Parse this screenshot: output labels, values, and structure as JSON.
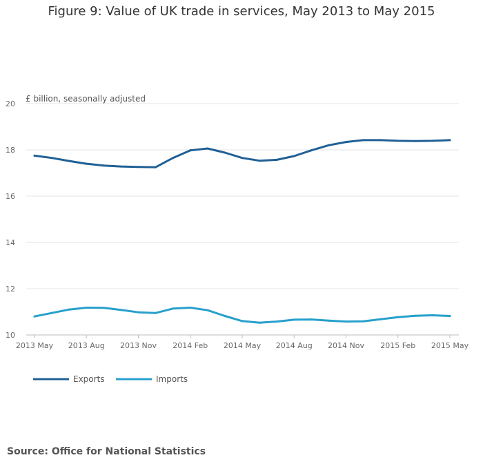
{
  "title": "Figure 9: Value of UK trade in services, May 2013 to May 2015",
  "unit_label": "£ billion, seasonally adjusted",
  "source": "Source: Office for National Statistics",
  "chart_data": {
    "type": "line",
    "title": "Figure 9: Value of UK trade in services, May 2013 to May 2015",
    "ylabel": "£ billion, seasonally adjusted",
    "xlabel": "",
    "ylim": [
      10,
      20
    ],
    "yticks": [
      10,
      12,
      14,
      16,
      18,
      20
    ],
    "grid": true,
    "legend_position": "bottom-left",
    "x": [
      "2013 May",
      "2013 Jun",
      "2013 Jul",
      "2013 Aug",
      "2013 Sep",
      "2013 Oct",
      "2013 Nov",
      "2013 Dec",
      "2014 Jan",
      "2014 Feb",
      "2014 Mar",
      "2014 Apr",
      "2014 May",
      "2014 Jun",
      "2014 Jul",
      "2014 Aug",
      "2014 Sep",
      "2014 Oct",
      "2014 Nov",
      "2014 Dec",
      "2015 Jan",
      "2015 Feb",
      "2015 Mar",
      "2015 Apr",
      "2015 May"
    ],
    "xtick_labels": [
      "2013 May",
      "2013 Aug",
      "2013 Nov",
      "2014 Feb",
      "2014 May",
      "2014 Aug",
      "2014 Nov",
      "2015 Feb",
      "2015 May"
    ],
    "series": [
      {
        "name": "Exports",
        "color": "#206095",
        "values": [
          17.75,
          17.65,
          17.52,
          17.4,
          17.32,
          17.28,
          17.26,
          17.25,
          17.65,
          17.98,
          18.06,
          17.88,
          17.65,
          17.53,
          17.57,
          17.73,
          17.98,
          18.2,
          18.34,
          18.42,
          18.42,
          18.39,
          18.38,
          18.39,
          18.42
        ]
      },
      {
        "name": "Imports",
        "color": "#27a0cc",
        "values": [
          10.8,
          10.95,
          11.1,
          11.18,
          11.17,
          11.08,
          10.98,
          10.95,
          11.14,
          11.18,
          11.07,
          10.82,
          10.6,
          10.53,
          10.58,
          10.66,
          10.67,
          10.62,
          10.58,
          10.59,
          10.68,
          10.77,
          10.83,
          10.85,
          10.82
        ]
      }
    ]
  }
}
